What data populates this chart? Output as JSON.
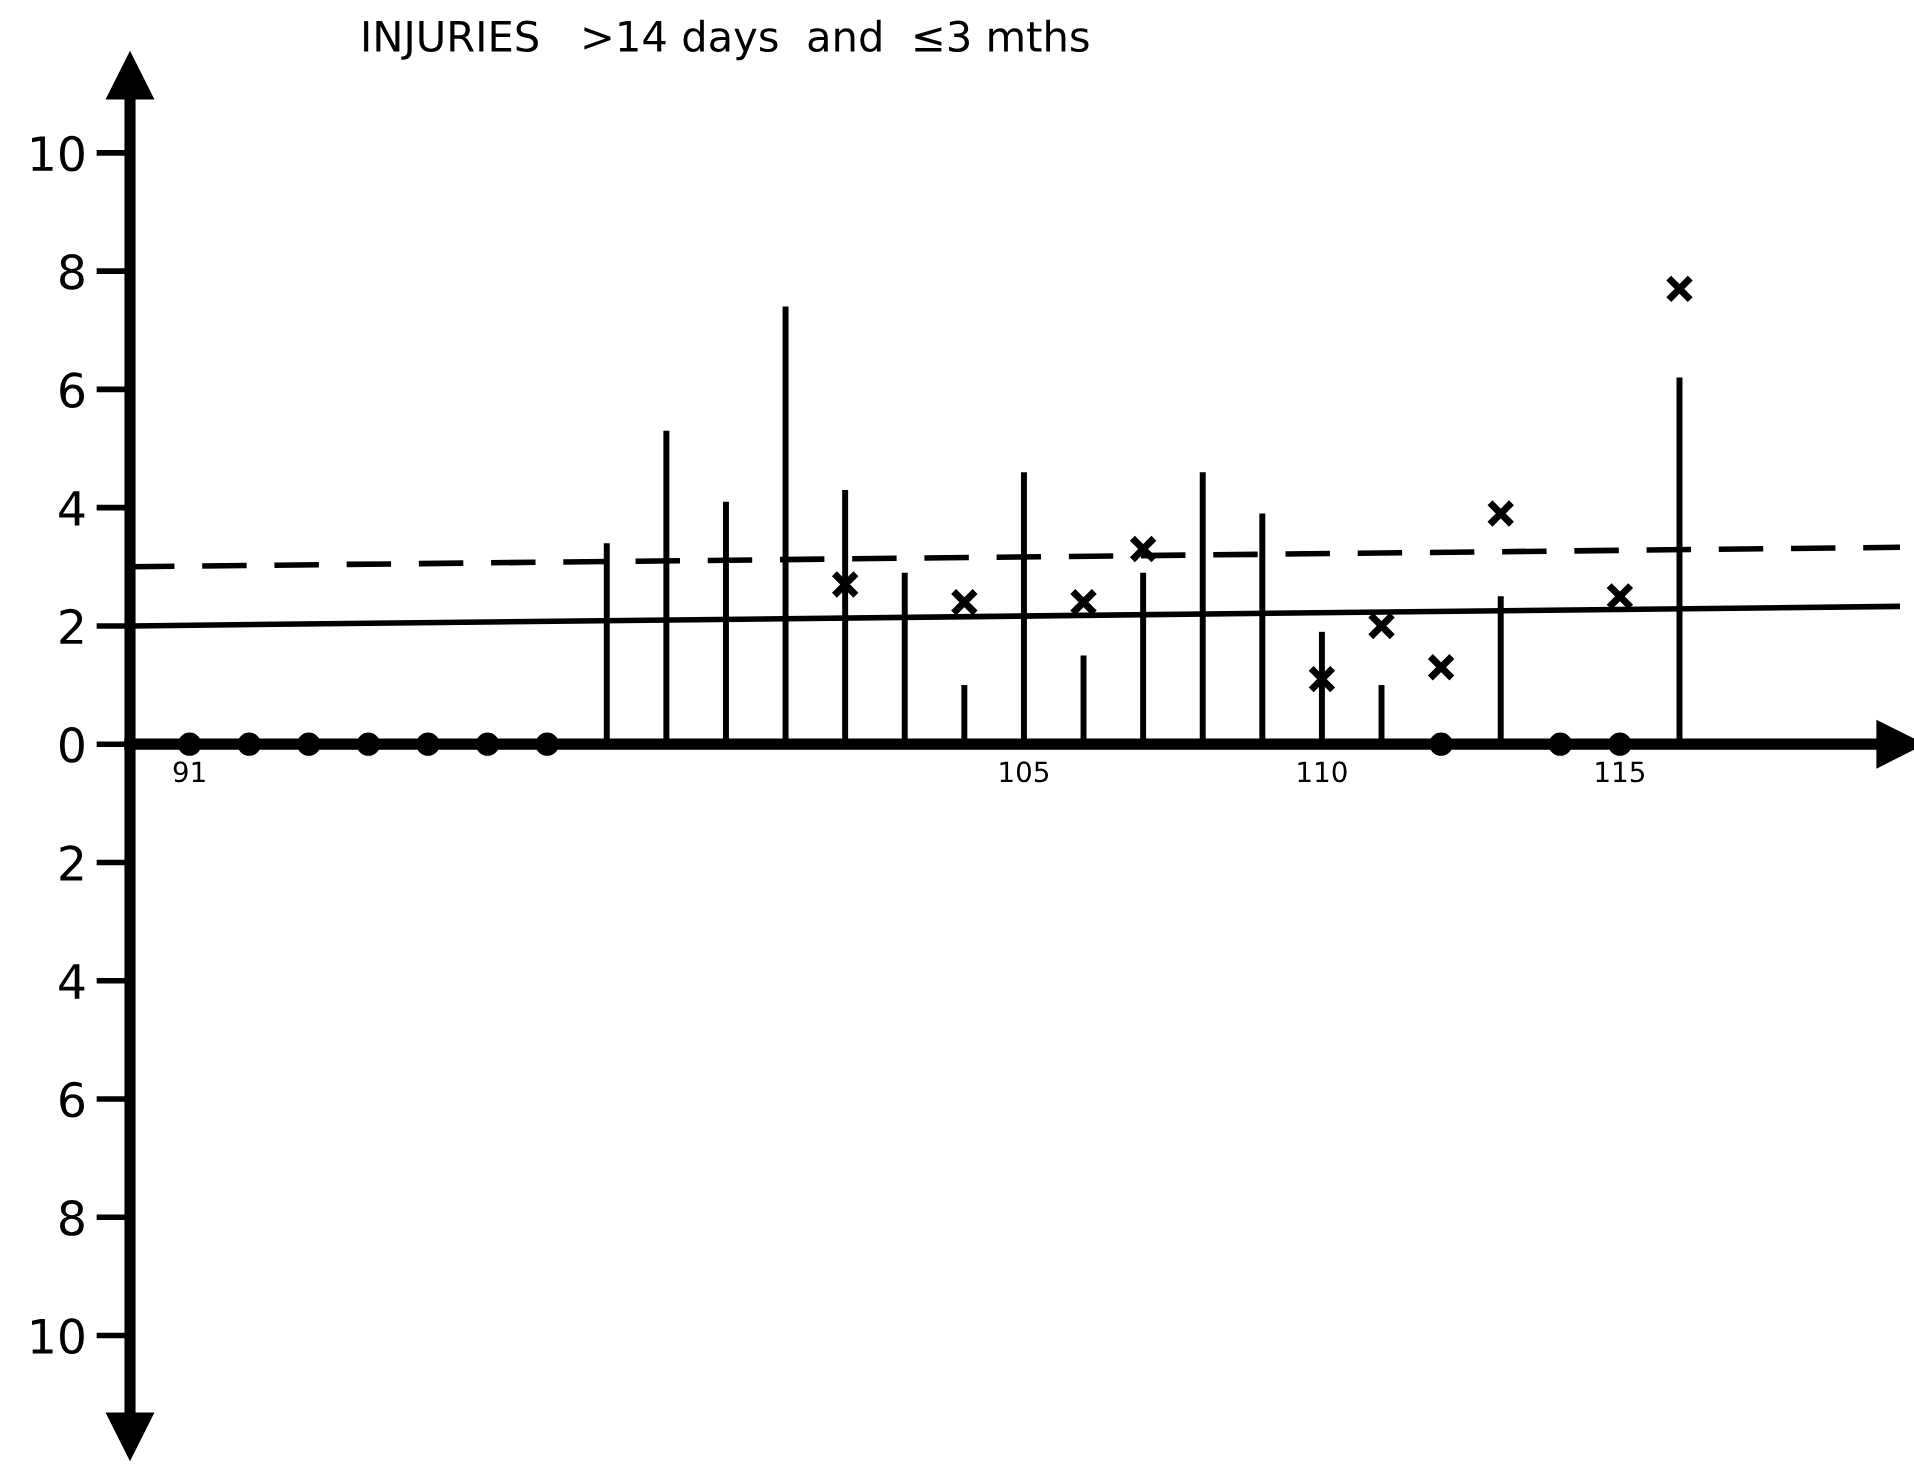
{
  "chart_data": {
    "type": "bar",
    "title": "INJURIES   >14 days  and  ≤3 mths",
    "xlim": [
      90,
      119.7
    ],
    "ylim": [
      -11.7,
      11.3
    ],
    "xticks": [
      91,
      105,
      110,
      115
    ],
    "yticks": [
      {
        "value": -10,
        "label": "10"
      },
      {
        "value": -8,
        "label": "8"
      },
      {
        "value": -6,
        "label": "6"
      },
      {
        "value": -4,
        "label": "4"
      },
      {
        "value": -2,
        "label": "2"
      },
      0,
      2,
      4,
      6,
      8,
      10
    ],
    "grid": false,
    "legend": false,
    "series": [
      {
        "color": "#000000",
        "x": [
          98,
          99,
          100,
          101,
          102,
          103,
          104,
          105,
          106,
          107,
          108,
          109,
          110,
          111,
          113,
          116
        ],
        "values": [
          3.4,
          5.3,
          4.1,
          7.4,
          4.3,
          2.9,
          1.0,
          4.6,
          1.5,
          2.9,
          4.6,
          3.9,
          1.9,
          1.0,
          2.5,
          6.2
        ]
      },
      {
        "type": "scatter",
        "color": "#000000",
        "marker": "circle",
        "x": [
          91,
          92,
          93,
          94,
          95,
          96,
          97,
          112,
          114,
          115
        ],
        "values": [
          0,
          0,
          0,
          0,
          0,
          0,
          0,
          0,
          0,
          0
        ]
      },
      {
        "type": "scatter",
        "color": "#000000",
        "marker": "cross",
        "x": [
          102,
          104,
          106,
          107,
          110,
          111,
          112,
          113,
          115,
          116
        ],
        "values": [
          2.7,
          2.4,
          2.4,
          3.3,
          1.1,
          2.0,
          1.3,
          3.9,
          2.5,
          7.7
        ]
      },
      {
        "type": "line",
        "color": "#000000",
        "line_style": "solid",
        "marker": "none",
        "x": [
          90,
          119.7
        ],
        "values": [
          2.0,
          2.33
        ]
      },
      {
        "type": "line",
        "color": "#000000",
        "line_style": "dashed",
        "marker": "none",
        "x": [
          90,
          119.7
        ],
        "values": [
          3.0,
          3.33
        ]
      }
    ]
  }
}
